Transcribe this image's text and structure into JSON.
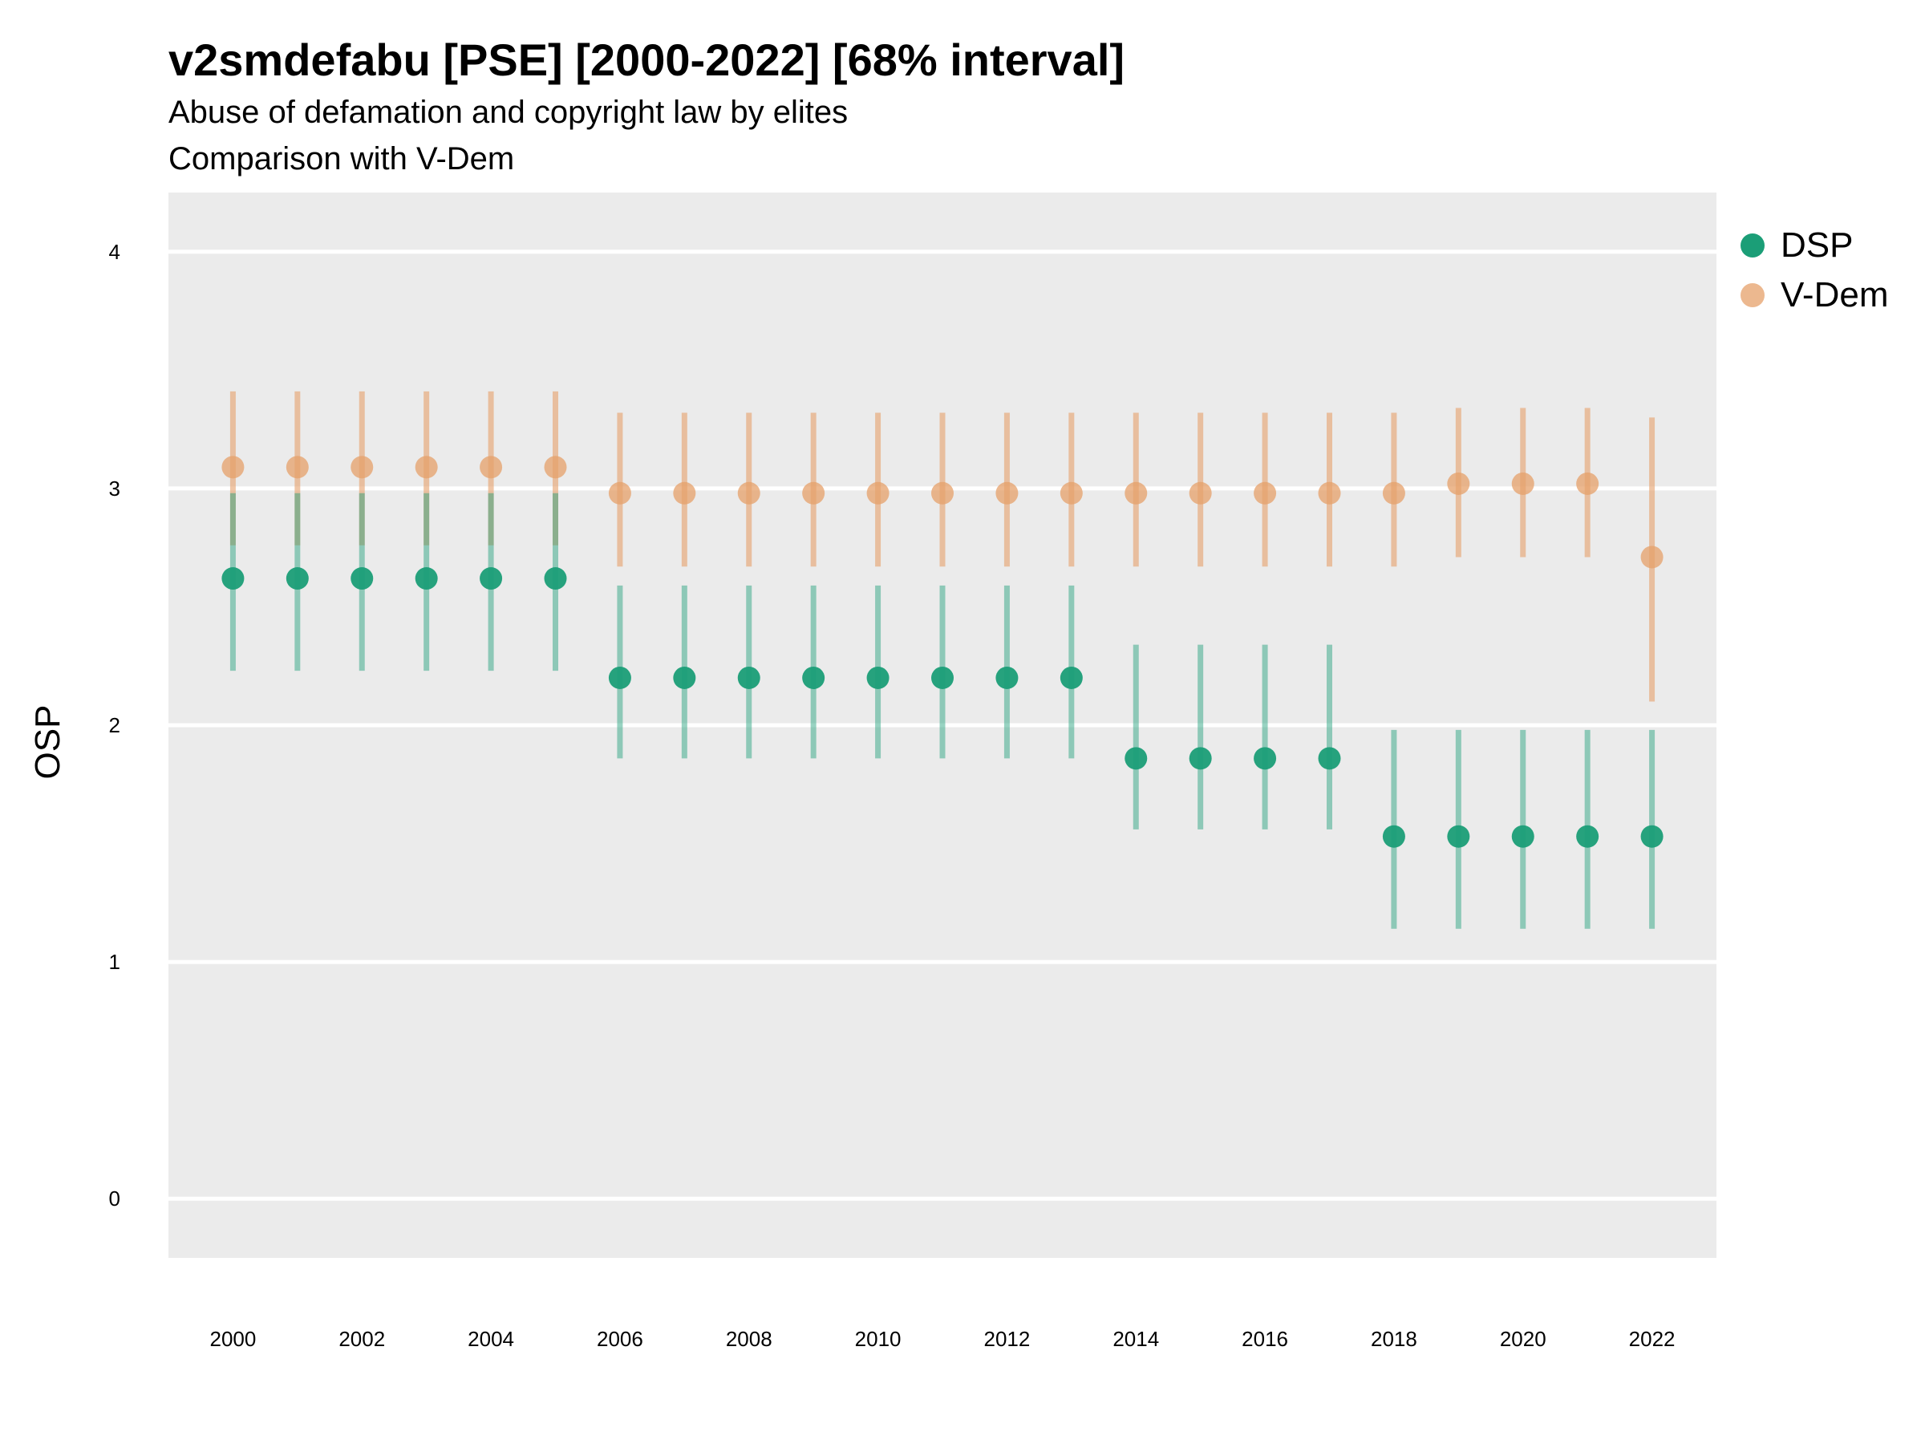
{
  "chart_data": {
    "type": "scatter",
    "title": "v2smdefabu [PSE] [2000-2022] [68% interval]",
    "subtitle": [
      "Abuse of defamation and copyright law by elites",
      "Comparison with V-Dem"
    ],
    "xlabel": "",
    "ylabel": "OSP",
    "xlim": [
      1999.0,
      2023.0
    ],
    "ylim": [
      -0.25,
      4.25
    ],
    "x_ticks": [
      "2000",
      "2002",
      "2004",
      "2006",
      "2008",
      "2010",
      "2012",
      "2014",
      "2016",
      "2018",
      "2020",
      "2022"
    ],
    "y_ticks": [
      "0",
      "1",
      "2",
      "3",
      "4"
    ],
    "grid": true,
    "legend_position": "right",
    "x": [
      2000,
      2001,
      2002,
      2003,
      2004,
      2005,
      2006,
      2007,
      2008,
      2009,
      2010,
      2011,
      2012,
      2013,
      2014,
      2015,
      2016,
      2017,
      2018,
      2019,
      2020,
      2021,
      2022
    ],
    "series": [
      {
        "name": "DSP",
        "color": "#1b9e77",
        "values": [
          2.62,
          2.62,
          2.62,
          2.62,
          2.62,
          2.62,
          2.2,
          2.2,
          2.2,
          2.2,
          2.2,
          2.2,
          2.2,
          2.2,
          1.86,
          1.86,
          1.86,
          1.86,
          1.53,
          1.53,
          1.53,
          1.53,
          1.53
        ],
        "lower": [
          2.23,
          2.23,
          2.23,
          2.23,
          2.23,
          2.23,
          1.86,
          1.86,
          1.86,
          1.86,
          1.86,
          1.86,
          1.86,
          1.86,
          1.56,
          1.56,
          1.56,
          1.56,
          1.14,
          1.14,
          1.14,
          1.14,
          1.14
        ],
        "upper": [
          2.98,
          2.98,
          2.98,
          2.98,
          2.98,
          2.98,
          2.59,
          2.59,
          2.59,
          2.59,
          2.59,
          2.59,
          2.59,
          2.59,
          2.34,
          2.34,
          2.34,
          2.34,
          1.98,
          1.98,
          1.98,
          1.98,
          1.98
        ]
      },
      {
        "name": "V-Dem",
        "color": "#e6a06a",
        "values": [
          3.09,
          3.09,
          3.09,
          3.09,
          3.09,
          3.09,
          2.98,
          2.98,
          2.98,
          2.98,
          2.98,
          2.98,
          2.98,
          2.98,
          2.98,
          2.98,
          2.98,
          2.98,
          2.98,
          3.02,
          3.02,
          3.02,
          2.71
        ],
        "lower": [
          2.76,
          2.76,
          2.76,
          2.76,
          2.76,
          2.76,
          2.67,
          2.67,
          2.67,
          2.67,
          2.67,
          2.67,
          2.67,
          2.67,
          2.67,
          2.67,
          2.67,
          2.67,
          2.67,
          2.71,
          2.71,
          2.71,
          2.1
        ],
        "upper": [
          3.41,
          3.41,
          3.41,
          3.41,
          3.41,
          3.41,
          3.32,
          3.32,
          3.32,
          3.32,
          3.32,
          3.32,
          3.32,
          3.32,
          3.32,
          3.32,
          3.32,
          3.32,
          3.32,
          3.34,
          3.34,
          3.34,
          3.3
        ]
      }
    ]
  }
}
